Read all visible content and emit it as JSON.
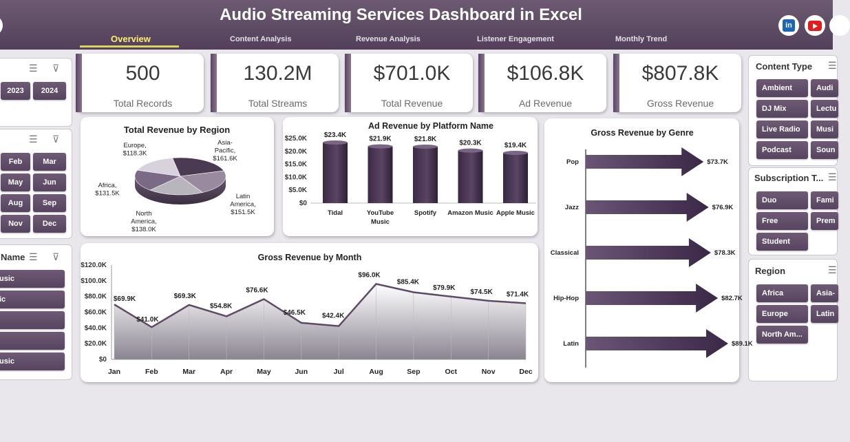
{
  "header": {
    "title": "Audio Streaming Services Dashboard in Excel",
    "tabs": [
      "Overview",
      "Content Analysis",
      "Revenue Analysis",
      "Listener Engagement",
      "Monthly Trend"
    ],
    "linkedin_label": "in"
  },
  "kpis": [
    {
      "value": "500",
      "label": "Total Records"
    },
    {
      "value": "130.2M",
      "label": "Total Streams"
    },
    {
      "value": "$701.0K",
      "label": "Total Revenue"
    },
    {
      "value": "$106.8K",
      "label": "Ad Revenue"
    },
    {
      "value": "$807.8K",
      "label": "Gross Revenue"
    }
  ],
  "left_filters": {
    "year": {
      "items": [
        "2023",
        "2024"
      ]
    },
    "month": {
      "items": [
        "Feb",
        "Mar",
        "May",
        "Jun",
        "Aug",
        "Sep",
        "Nov",
        "Dec"
      ]
    },
    "platform": {
      "header": "Name",
      "items": [
        "usic",
        "ic",
        "",
        "",
        "usic"
      ]
    }
  },
  "right_filters": {
    "content_type": {
      "header": "Content Type",
      "items": [
        "Ambient",
        "Audi",
        "DJ Mix",
        "Lectu",
        "Live Radio",
        "Musi",
        "Podcast",
        "Soun"
      ]
    },
    "subscription": {
      "header": "Subscription T...",
      "items": [
        "Duo",
        "Fami",
        "Free",
        "Prem",
        "Student"
      ]
    },
    "region": {
      "header": "Region",
      "items": [
        "Africa",
        "Asia-",
        "Europe",
        "Latin",
        "North Am..."
      ]
    }
  },
  "chart_data": [
    {
      "type": "pie",
      "title": "Total Revenue by Region",
      "categories": [
        "Asia-Pacific",
        "Latin America",
        "North America",
        "Africa",
        "Europe"
      ],
      "labels": [
        "Asia-Pacific, $161.6K",
        "Latin America, $151.5K",
        "North America, $138.0K",
        "Africa, $131.5K",
        "Europe, $118.3K"
      ],
      "values": [
        161.6,
        151.5,
        138.0,
        131.5,
        118.3
      ],
      "colors": [
        "#4a3a52",
        "#9a8aa0",
        "#b8b6bc",
        "#7a6a86",
        "#d8d2dc"
      ]
    },
    {
      "type": "bar",
      "title": "Ad Revenue  by Platform Name",
      "categories": [
        "Tidal",
        "YouTube Music",
        "Spotify",
        "Amazon Music",
        "Apple Music"
      ],
      "values": [
        23.4,
        21.9,
        21.8,
        20.3,
        19.4
      ],
      "value_labels": [
        "$23.4K",
        "$21.9K",
        "$21.8K",
        "$20.3K",
        "$19.4K"
      ],
      "yticks": [
        "$0",
        "$5.0K",
        "$10.0K",
        "$15.0K",
        "$20.0K",
        "$25.0K"
      ],
      "ylim": [
        0,
        25
      ]
    },
    {
      "type": "area",
      "title": "Gross Revenue by Month",
      "categories": [
        "Jan",
        "Feb",
        "Mar",
        "Apr",
        "May",
        "Jun",
        "Jul",
        "Aug",
        "Sep",
        "Oct",
        "Nov",
        "Dec"
      ],
      "values": [
        69.9,
        41.0,
        69.3,
        54.8,
        76.6,
        46.5,
        42.4,
        96.0,
        85.4,
        79.9,
        74.5,
        71.4
      ],
      "value_labels": [
        "$69.9K",
        "$41.0K",
        "$69.3K",
        "$54.8K",
        "$76.6K",
        "$46.5K",
        "$42.4K",
        "$96.0K",
        "$85.4K",
        "$79.9K",
        "$74.5K",
        "$71.4K"
      ],
      "yticks": [
        "$0",
        "$20.0K",
        "$40.0K",
        "$60.0K",
        "$80.0K",
        "$100.0K",
        "$120.0K"
      ],
      "ylim": [
        0,
        120
      ]
    },
    {
      "type": "bar",
      "orientation": "horizontal",
      "title": "Gross Revenue  by Genre",
      "categories": [
        "Pop",
        "Jazz",
        "Classical",
        "Hip-Hop",
        "Latin"
      ],
      "values": [
        73.7,
        76.9,
        78.3,
        82.7,
        89.1
      ],
      "value_labels": [
        "$73.7K",
        "$76.9K",
        "$78.3K",
        "$82.7K",
        "$89.1K"
      ],
      "xlim": [
        0,
        89.1
      ]
    }
  ]
}
